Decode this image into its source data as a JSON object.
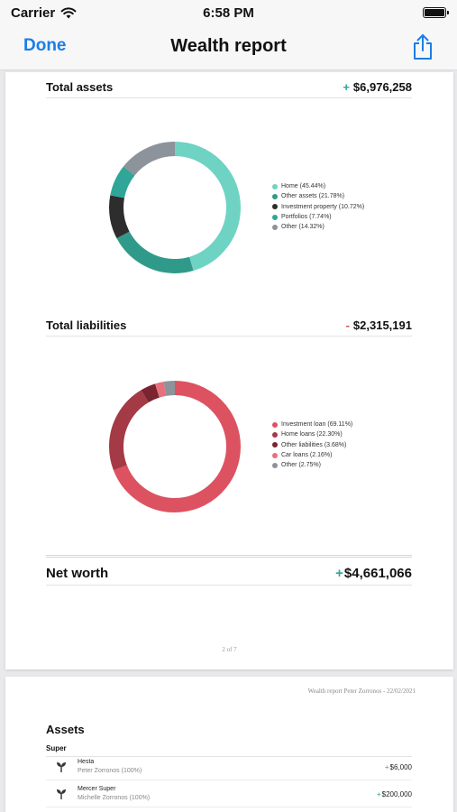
{
  "status_bar": {
    "carrier": "Carrier",
    "time": "6:58 PM"
  },
  "nav": {
    "done": "Done",
    "title": "Wealth report",
    "share_icon": "share-icon"
  },
  "page1": {
    "total_assets": {
      "label": "Total assets",
      "sign": "+",
      "amount": "$6,976,258",
      "legend": [
        {
          "label": "Home (45.44%)",
          "color": "#6fd3c4"
        },
        {
          "label": "Other assets (21.78%)",
          "color": "#2f9a8a"
        },
        {
          "label": "Investment property (10.72%)",
          "color": "#2d2d2d"
        },
        {
          "label": "Portfolios (7.74%)",
          "color": "#2fa697"
        },
        {
          "label": "Other (14.32%)",
          "color": "#8c939a"
        }
      ]
    },
    "total_liabilities": {
      "label": "Total liabilities",
      "sign": "-",
      "amount": "$2,315,191",
      "legend": [
        {
          "label": "Investment loan (69.11%)",
          "color": "#dd5260"
        },
        {
          "label": "Home loans (22.30%)",
          "color": "#a33a45"
        },
        {
          "label": "Other liabilities (3.68%)",
          "color": "#7a2430"
        },
        {
          "label": "Car loans (2.16%)",
          "color": "#e8707c"
        },
        {
          "label": "Other (2.75%)",
          "color": "#8c939a"
        }
      ]
    },
    "net_worth": {
      "label": "Net worth",
      "sign": "+",
      "amount": "$4,661,066"
    },
    "page_number": "2 of 7"
  },
  "page2": {
    "header": "Wealth report Peter Zorronos - 22/02/2021",
    "assets_title": "Assets",
    "super_label": "Super",
    "rows": [
      {
        "name": "Hesta",
        "owner": "Peter Zorronos (100%)",
        "sign": "+",
        "amount": "$6,000"
      },
      {
        "name": "Mercer Super",
        "owner": "Michelle Zorronos (100%)",
        "sign": "+",
        "amount": "$200,000"
      }
    ]
  },
  "chart_data": [
    {
      "type": "pie",
      "title": "Total assets",
      "categories": [
        "Home",
        "Other assets",
        "Investment property",
        "Portfolios",
        "Other"
      ],
      "values": [
        45.44,
        21.78,
        10.72,
        7.74,
        14.32
      ],
      "colors": [
        "#6fd3c4",
        "#2f9a8a",
        "#2d2d2d",
        "#2fa697",
        "#8c939a"
      ],
      "legend": "right"
    },
    {
      "type": "pie",
      "title": "Total liabilities",
      "categories": [
        "Investment loan",
        "Home loans",
        "Other liabilities",
        "Car loans",
        "Other"
      ],
      "values": [
        69.11,
        22.3,
        3.68,
        2.16,
        2.75
      ],
      "colors": [
        "#dd5260",
        "#a33a45",
        "#7a2430",
        "#e8707c",
        "#8c939a"
      ],
      "legend": "right"
    }
  ]
}
